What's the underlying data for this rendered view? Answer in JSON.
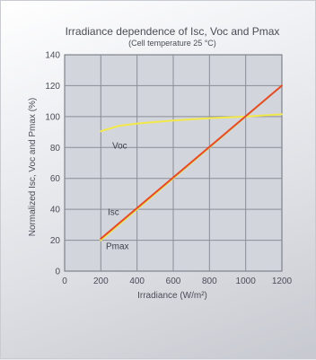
{
  "chart_data": {
    "type": "line",
    "title": "Irradiance dependence of Isc, Voc and Pmax",
    "subtitle": "(Cell temperature 25 °C)",
    "xlabel": "Irradiance  (W/m²)",
    "ylabel": "Normalized Isc, Voc and Pmax (%)",
    "xlim": [
      0,
      1200
    ],
    "ylim": [
      0,
      140
    ],
    "xticks": [
      "0",
      "200",
      "400",
      "600",
      "800",
      "1000",
      "1200"
    ],
    "yticks": [
      "0",
      "20",
      "40",
      "60",
      "80",
      "100",
      "120",
      "140"
    ],
    "grid": true,
    "series": [
      {
        "name": "Voc",
        "color": "#f2e84a",
        "x": [
          200,
          300,
          400,
          600,
          800,
          1000,
          1200
        ],
        "y": [
          90.5,
          94,
          95.5,
          97.5,
          99,
          100,
          101.5
        ]
      },
      {
        "name": "Isc",
        "color": "#e24a2c",
        "x": [
          200,
          1200
        ],
        "y": [
          21,
          120
        ]
      },
      {
        "name": "Pmax",
        "color": "#f2e84a",
        "x": [
          200,
          1200
        ],
        "y": [
          20,
          120
        ]
      }
    ]
  }
}
